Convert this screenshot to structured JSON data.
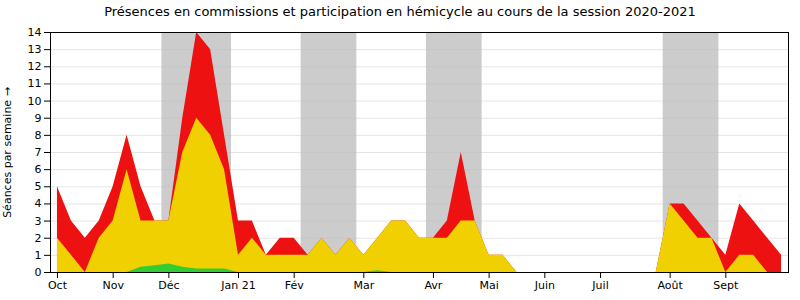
{
  "chart_data": {
    "type": "area",
    "title": "Présences en commissions et participation en hémicycle au cours de la session 2020-2021",
    "ylabel": "Séances par semaine",
    "stacked": false,
    "grid": true,
    "x": [
      0,
      1,
      2,
      3,
      4,
      5,
      6,
      7,
      8,
      9,
      10,
      11,
      12,
      13,
      14,
      15,
      16,
      17,
      18,
      19,
      20,
      21,
      22,
      23,
      24,
      25,
      26,
      27,
      28,
      29,
      30,
      31,
      32,
      33,
      34,
      35,
      36,
      37,
      38,
      39,
      40,
      41,
      42,
      43,
      44,
      45,
      46,
      47,
      48,
      49,
      50,
      51,
      52
    ],
    "xlim": [
      -0.5,
      52.5
    ],
    "xticks": [
      {
        "value": 0,
        "label": "Oct"
      },
      {
        "value": 4,
        "label": "Nov"
      },
      {
        "value": 8,
        "label": "Déc"
      },
      {
        "value": 13,
        "label": "Jan 21"
      },
      {
        "value": 17,
        "label": "Fév"
      },
      {
        "value": 22,
        "label": "Mar"
      },
      {
        "value": 27,
        "label": "Avr"
      },
      {
        "value": 31,
        "label": "Mai"
      },
      {
        "value": 35,
        "label": "Juin"
      },
      {
        "value": 39,
        "label": "Juil"
      },
      {
        "value": 44,
        "label": "Août"
      },
      {
        "value": 48,
        "label": "Sept"
      }
    ],
    "ylim": [
      0,
      14
    ],
    "yticks": [
      0,
      1,
      2,
      3,
      4,
      5,
      6,
      7,
      8,
      9,
      10,
      11,
      12,
      13,
      14
    ],
    "bands": [
      {
        "x1": 7.5,
        "x2": 12.5,
        "color": "#bbbbbb"
      },
      {
        "x1": 17.5,
        "x2": 21.5,
        "color": "#bbbbbb"
      },
      {
        "x1": 26.5,
        "x2": 30.5,
        "color": "#bbbbbb"
      },
      {
        "x1": 43.5,
        "x2": 47.5,
        "color": "#bbbbbb"
      }
    ],
    "series": [
      {
        "color": "#ee1111",
        "values": [
          5,
          3,
          2,
          3,
          5,
          8,
          5,
          3,
          3,
          9,
          14,
          13,
          8,
          3,
          3,
          1,
          2,
          2,
          1,
          2,
          1,
          2,
          1,
          2,
          3,
          3,
          2,
          2,
          3,
          7,
          3,
          1,
          1,
          0,
          0,
          0,
          0,
          0,
          0,
          0,
          0,
          0,
          0,
          0,
          4,
          4,
          3,
          2,
          1,
          4,
          3,
          2,
          1
        ]
      },
      {
        "color": "#f0d000",
        "values": [
          2,
          1,
          0,
          2,
          3,
          6,
          3,
          3,
          3,
          7,
          9,
          8,
          6,
          1,
          2,
          1,
          1,
          1,
          1,
          2,
          1,
          2,
          1,
          2,
          3,
          3,
          2,
          2,
          2,
          3,
          3,
          1,
          1,
          0,
          0,
          0,
          0,
          0,
          0,
          0,
          0,
          0,
          0,
          0,
          4,
          3,
          2,
          2,
          0,
          1,
          1,
          0,
          0
        ]
      },
      {
        "color": "#33cc33",
        "values": [
          0,
          0,
          0,
          0,
          0,
          0,
          0.3,
          0.4,
          0.5,
          0.3,
          0.2,
          0.2,
          0.2,
          0,
          0,
          0,
          0,
          0,
          0,
          0,
          0,
          0,
          0,
          0.1,
          0,
          0,
          0,
          0,
          0,
          0,
          0,
          0,
          0,
          0,
          0,
          0,
          0,
          0,
          0,
          0,
          0,
          0,
          0,
          0,
          0,
          0,
          0,
          0,
          0,
          0,
          0,
          0,
          0
        ]
      }
    ]
  }
}
